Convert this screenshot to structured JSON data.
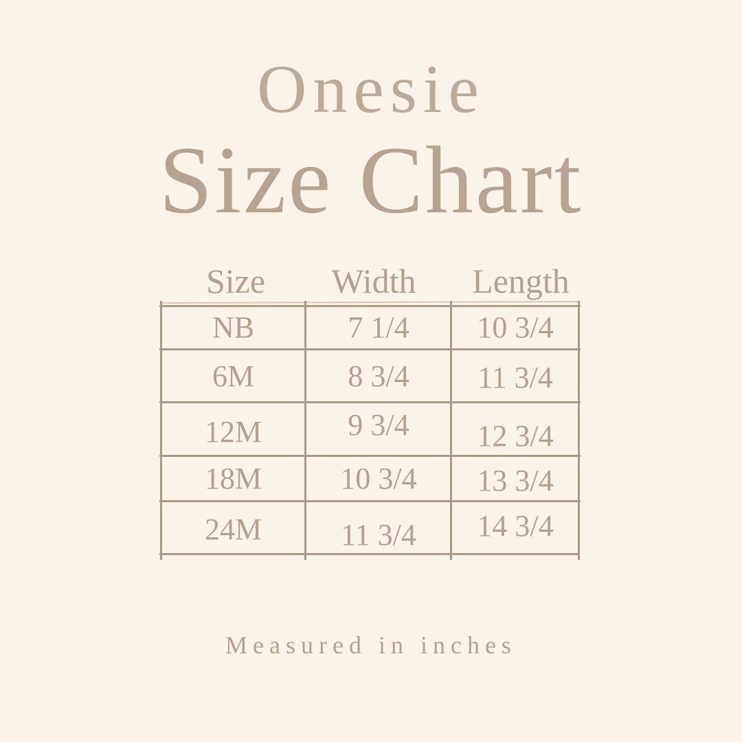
{
  "page": {
    "background_color": "#faf3e9",
    "text_color": "#b5a190",
    "border_color": "#ab9988"
  },
  "title": {
    "product": "Onesie",
    "main": "Size Chart"
  },
  "table": {
    "columns": [
      "Size",
      "Width",
      "Length"
    ],
    "rows": [
      {
        "size": "NB",
        "width": "7 1/4",
        "length": "10 3/4"
      },
      {
        "size": "6M",
        "width": "8 3/4",
        "length": "11 3/4"
      },
      {
        "size": "12M",
        "width": "9 3/4",
        "length": "12 3/4"
      },
      {
        "size": "18M",
        "width": "10 3/4",
        "length": "13 3/4"
      },
      {
        "size": "24M",
        "width": "11 3/4",
        "length": "14 3/4"
      }
    ]
  },
  "footer": {
    "note": "Measured in inches"
  },
  "chart_data": {
    "type": "table",
    "title": "Onesie Size Chart",
    "columns": [
      "Size",
      "Width",
      "Length"
    ],
    "rows": [
      [
        "NB",
        "7 1/4",
        "10 3/4"
      ],
      [
        "6M",
        "8 3/4",
        "11 3/4"
      ],
      [
        "12M",
        "9 3/4",
        "12 3/4"
      ],
      [
        "18M",
        "10 3/4",
        "13 3/4"
      ],
      [
        "24M",
        "11 3/4",
        "14 3/4"
      ]
    ],
    "units": "inches"
  }
}
